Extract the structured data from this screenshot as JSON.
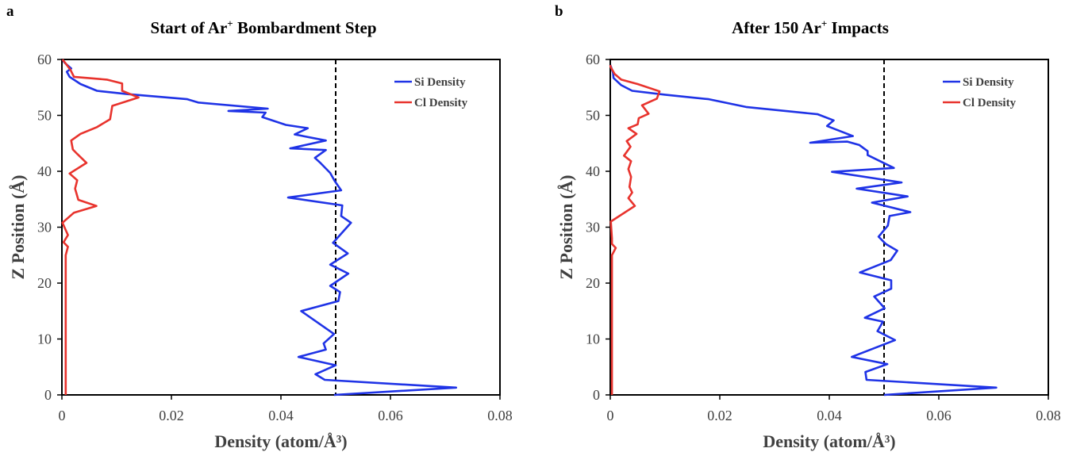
{
  "colors": {
    "si": "#1f33e6",
    "cl": "#e8332d",
    "reference": "#000000",
    "axis": "#000000"
  },
  "chart_data": [
    {
      "panel_letter": "a",
      "title": "Start of Ar",
      "title_sup": "+",
      "title_suffix": " Bombardment Step",
      "type": "line",
      "orientation": "horizontal-density",
      "xlabel": "Density (atom/Å³)",
      "ylabel": "Z Position (Å)",
      "xlim": [
        0,
        0.08
      ],
      "ylim": [
        0,
        60
      ],
      "xticks": [
        "0",
        "0.02",
        "0.04",
        "0.06",
        "0.08"
      ],
      "yticks": [
        "0",
        "10",
        "20",
        "30",
        "40",
        "50",
        "60"
      ],
      "reference_line_x": 0.05,
      "legend": [
        "Si Density",
        "Cl Density"
      ],
      "legend_position": "top-right",
      "series": [
        {
          "name": "Si Density",
          "color": "#1f33e6",
          "points": [
            [
              0.0497,
              0
            ],
            [
              0.072,
              1.3
            ],
            [
              0.048,
              2.7
            ],
            [
              0.0463,
              3.7
            ],
            [
              0.05,
              5.3
            ],
            [
              0.0432,
              6.8
            ],
            [
              0.0482,
              8.1
            ],
            [
              0.0478,
              9.2
            ],
            [
              0.0497,
              10.9
            ],
            [
              0.0437,
              15.0
            ],
            [
              0.0505,
              16.8
            ],
            [
              0.0508,
              18.4
            ],
            [
              0.049,
              19.5
            ],
            [
              0.0523,
              21.7
            ],
            [
              0.049,
              23.3
            ],
            [
              0.0522,
              25.3
            ],
            [
              0.0495,
              27.2
            ],
            [
              0.0528,
              30.8
            ],
            [
              0.051,
              32.0
            ],
            [
              0.0512,
              33.9
            ],
            [
              0.0413,
              35.3
            ],
            [
              0.051,
              36.6
            ],
            [
              0.0498,
              38.3
            ],
            [
              0.049,
              39.7
            ],
            [
              0.0473,
              41.4
            ],
            [
              0.0462,
              42.4
            ],
            [
              0.0482,
              43.8
            ],
            [
              0.0417,
              44.1
            ],
            [
              0.0482,
              45.5
            ],
            [
              0.0425,
              46.6
            ],
            [
              0.0449,
              47.7
            ],
            [
              0.0409,
              48.3
            ],
            [
              0.0366,
              49.7
            ],
            [
              0.0372,
              50.5
            ],
            [
              0.0304,
              50.8
            ],
            [
              0.0376,
              51.2
            ],
            [
              0.0249,
              52.3
            ],
            [
              0.0229,
              52.9
            ],
            [
              0.012,
              53.8
            ],
            [
              0.0064,
              54.4
            ],
            [
              0.0034,
              55.6
            ],
            [
              0.0014,
              56.9
            ],
            [
              0.0009,
              57.8
            ],
            [
              0.0017,
              58.4
            ],
            [
              0.0005,
              59.4
            ],
            [
              0.0001,
              60
            ]
          ]
        },
        {
          "name": "Cl Density",
          "color": "#e8332d",
          "points": [
            [
              0.0007,
              0
            ],
            [
              0.0007,
              25.0
            ],
            [
              0.0011,
              26.5
            ],
            [
              0.0003,
              27.3
            ],
            [
              0.0011,
              28.6
            ],
            [
              0.0001,
              30.8
            ],
            [
              0.0022,
              32.6
            ],
            [
              0.0063,
              33.8
            ],
            [
              0.003,
              34.9
            ],
            [
              0.0024,
              36.9
            ],
            [
              0.0028,
              38.4
            ],
            [
              0.0014,
              39.6
            ],
            [
              0.0045,
              41.5
            ],
            [
              0.0028,
              43.1
            ],
            [
              0.002,
              43.9
            ],
            [
              0.0017,
              45.5
            ],
            [
              0.0034,
              46.7
            ],
            [
              0.0064,
              47.9
            ],
            [
              0.0088,
              49.3
            ],
            [
              0.0092,
              51.7
            ],
            [
              0.014,
              53.2
            ],
            [
              0.011,
              54.4
            ],
            [
              0.011,
              55.7
            ],
            [
              0.0082,
              56.4
            ],
            [
              0.0022,
              56.9
            ],
            [
              0.0016,
              58.1
            ],
            [
              0.0006,
              59.4
            ],
            [
              0.0001,
              60
            ]
          ]
        }
      ]
    },
    {
      "panel_letter": "b",
      "title": "After 150 Ar",
      "title_sup": "+",
      "title_suffix": " Impacts",
      "type": "line",
      "orientation": "horizontal-density",
      "xlabel": "Density (atom/Å³)",
      "ylabel": "Z Position (Å)",
      "xlim": [
        0,
        0.08
      ],
      "ylim": [
        0,
        60
      ],
      "xticks": [
        "0",
        "0.02",
        "0.04",
        "0.06",
        "0.08"
      ],
      "yticks": [
        "0",
        "10",
        "20",
        "30",
        "40",
        "50",
        "60"
      ],
      "reference_line_x": 0.05,
      "legend": [
        "Si Density",
        "Cl Density"
      ],
      "legend_position": "top-right",
      "series": [
        {
          "name": "Si Density",
          "color": "#1f33e6",
          "points": [
            [
              0.05,
              0
            ],
            [
              0.0705,
              1.3
            ],
            [
              0.0468,
              2.7
            ],
            [
              0.0466,
              4.1
            ],
            [
              0.0506,
              5.5
            ],
            [
              0.0441,
              6.8
            ],
            [
              0.052,
              9.8
            ],
            [
              0.0488,
              11.4
            ],
            [
              0.0498,
              13.1
            ],
            [
              0.0465,
              13.8
            ],
            [
              0.0501,
              15.5
            ],
            [
              0.0482,
              17.6
            ],
            [
              0.0513,
              19.0
            ],
            [
              0.0513,
              20.5
            ],
            [
              0.0456,
              21.9
            ],
            [
              0.0512,
              24.1
            ],
            [
              0.0524,
              25.8
            ],
            [
              0.0503,
              27.0
            ],
            [
              0.049,
              28.3
            ],
            [
              0.0507,
              30.3
            ],
            [
              0.051,
              32.0
            ],
            [
              0.0548,
              32.7
            ],
            [
              0.0478,
              34.4
            ],
            [
              0.0543,
              35.5
            ],
            [
              0.045,
              36.9
            ],
            [
              0.0532,
              38.0
            ],
            [
              0.0405,
              39.9
            ],
            [
              0.0518,
              40.6
            ],
            [
              0.047,
              42.9
            ],
            [
              0.047,
              43.6
            ],
            [
              0.0455,
              44.7
            ],
            [
              0.0433,
              45.3
            ],
            [
              0.0365,
              45.1
            ],
            [
              0.0443,
              46.3
            ],
            [
              0.0396,
              48.1
            ],
            [
              0.0408,
              49.1
            ],
            [
              0.0379,
              50.2
            ],
            [
              0.0248,
              51.5
            ],
            [
              0.018,
              52.9
            ],
            [
              0.01,
              53.7
            ],
            [
              0.004,
              54.4
            ],
            [
              0.002,
              55.4
            ],
            [
              0.0006,
              56.7
            ],
            [
              0.0005,
              57.6
            ],
            [
              0.0001,
              58.8
            ],
            [
              0,
              59
            ]
          ]
        },
        {
          "name": "Cl Density",
          "color": "#e8332d",
          "points": [
            [
              0.0003,
              0
            ],
            [
              0.0003,
              25.0
            ],
            [
              0.001,
              26.3
            ],
            [
              0.0003,
              27.0
            ],
            [
              0.0003,
              28.0
            ],
            [
              0.0001,
              31.0
            ],
            [
              0.0045,
              33.8
            ],
            [
              0.0033,
              35.2
            ],
            [
              0.004,
              36.2
            ],
            [
              0.0035,
              37.2
            ],
            [
              0.0038,
              39.0
            ],
            [
              0.0033,
              40.4
            ],
            [
              0.0038,
              41.8
            ],
            [
              0.0025,
              42.8
            ],
            [
              0.0037,
              44.4
            ],
            [
              0.003,
              45.4
            ],
            [
              0.0048,
              46.7
            ],
            [
              0.0033,
              47.7
            ],
            [
              0.005,
              48.4
            ],
            [
              0.0052,
              49.5
            ],
            [
              0.007,
              50.3
            ],
            [
              0.0058,
              51.8
            ],
            [
              0.0085,
              53.0
            ],
            [
              0.009,
              54.3
            ],
            [
              0.005,
              55.6
            ],
            [
              0.002,
              56.4
            ],
            [
              0.0008,
              57.4
            ],
            [
              0.0001,
              58.6
            ],
            [
              0,
              59
            ]
          ]
        }
      ]
    }
  ]
}
